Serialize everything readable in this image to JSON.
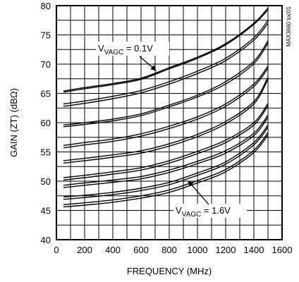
{
  "chart_data": {
    "type": "line",
    "title": "",
    "code": "MAX3660 toc01",
    "xlabel": "FREQUENCY (MHz)",
    "ylabel": "GAIN (ZT) (dBΩ)",
    "xlim": [
      0,
      1600
    ],
    "ylim": [
      40,
      80
    ],
    "xticks": [
      0,
      200,
      400,
      600,
      800,
      1000,
      1200,
      1400,
      1600
    ],
    "yticks": [
      40,
      45,
      50,
      55,
      60,
      65,
      70,
      75,
      80
    ],
    "grid": true,
    "annotations": [
      {
        "prefix": "V",
        "sub": "VAGC",
        "suffix": " = 0.1V",
        "point": [
          700,
          68.7
        ]
      },
      {
        "prefix": "V",
        "sub": "VAGC",
        "suffix": " = 1.6V",
        "point": [
          940,
          50.5
        ]
      }
    ],
    "x": [
      50,
      200,
      400,
      600,
      800,
      1000,
      1200,
      1400,
      1500
    ],
    "series": [
      {
        "values": [
          65.4,
          66.0,
          66.7,
          67.6,
          69.4,
          71.2,
          73.5,
          77.0,
          79.6
        ]
      },
      {
        "values": [
          65.2,
          65.8,
          66.5,
          67.4,
          69.2,
          71.0,
          73.3,
          76.8,
          79.3
        ]
      },
      {
        "values": [
          63.2,
          63.7,
          64.5,
          65.5,
          67.0,
          68.8,
          71.0,
          74.5,
          77.5
        ]
      },
      {
        "values": [
          62.8,
          63.3,
          64.1,
          65.1,
          66.6,
          68.4,
          70.6,
          74.1,
          77.0
        ]
      },
      {
        "values": [
          59.6,
          60.0,
          60.6,
          61.5,
          63.0,
          64.7,
          67.0,
          70.5,
          74.0
        ]
      },
      {
        "values": [
          59.3,
          59.7,
          60.3,
          61.2,
          62.7,
          64.4,
          66.6,
          70.1,
          73.6
        ]
      },
      {
        "values": [
          56.1,
          56.6,
          57.2,
          58.1,
          59.4,
          61.0,
          63.2,
          66.6,
          69.7
        ]
      },
      {
        "values": [
          55.7,
          56.2,
          56.8,
          57.7,
          59.0,
          60.6,
          62.8,
          66.2,
          69.3
        ]
      },
      {
        "values": [
          53.5,
          53.9,
          54.5,
          55.2,
          56.4,
          58.0,
          60.2,
          63.6,
          67.8
        ]
      },
      {
        "values": [
          53.1,
          53.5,
          54.1,
          54.8,
          56.0,
          57.6,
          59.8,
          63.2,
          67.4
        ]
      },
      {
        "values": [
          50.6,
          51.0,
          51.6,
          52.3,
          53.5,
          55.1,
          57.0,
          60.0,
          63.3
        ]
      },
      {
        "values": [
          50.2,
          50.6,
          51.2,
          51.9,
          53.1,
          54.7,
          56.6,
          59.6,
          62.9
        ]
      },
      {
        "values": [
          49.3,
          49.7,
          50.2,
          50.8,
          51.9,
          53.4,
          55.2,
          58.2,
          61.3
        ]
      },
      {
        "values": [
          48.9,
          49.3,
          49.8,
          50.4,
          51.5,
          53.0,
          54.8,
          57.8,
          60.9
        ]
      },
      {
        "values": [
          47.3,
          47.6,
          48.1,
          48.8,
          49.8,
          51.4,
          53.3,
          56.6,
          59.6
        ]
      },
      {
        "values": [
          46.9,
          47.2,
          47.7,
          48.4,
          49.4,
          51.0,
          52.9,
          56.2,
          59.2
        ]
      },
      {
        "values": [
          46.0,
          46.3,
          46.8,
          47.5,
          48.5,
          50.1,
          52.0,
          55.3,
          58.3
        ]
      },
      {
        "values": [
          45.6,
          45.9,
          46.4,
          47.1,
          48.1,
          49.7,
          51.6,
          54.9,
          57.9
        ]
      }
    ]
  }
}
